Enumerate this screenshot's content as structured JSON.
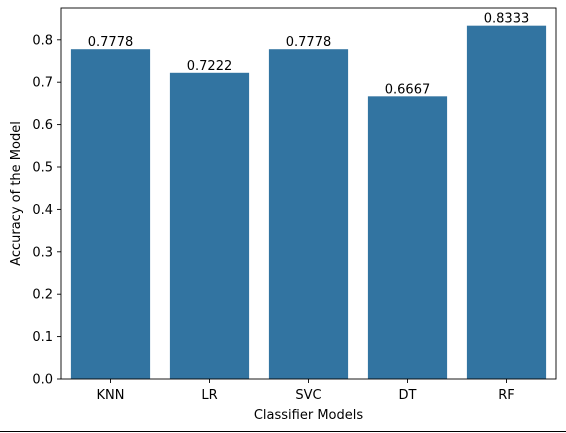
{
  "chart_data": {
    "type": "bar",
    "categories": [
      "KNN",
      "LR",
      "SVC",
      "DT",
      "RF"
    ],
    "values": [
      0.7778,
      0.7222,
      0.7778,
      0.6667,
      0.8333
    ],
    "value_labels": [
      "0.7778",
      "0.7222",
      "0.7778",
      "0.6667",
      "0.8333"
    ],
    "title": "",
    "xlabel": "Classifier Models",
    "ylabel": "Accuracy of the Model",
    "ylim": [
      0,
      0.875
    ],
    "yticks": [
      0.0,
      0.1,
      0.2,
      0.3,
      0.4,
      0.5,
      0.6,
      0.7,
      0.8
    ],
    "ytick_labels": [
      "0.0",
      "0.1",
      "0.2",
      "0.3",
      "0.4",
      "0.5",
      "0.6",
      "0.7",
      "0.8"
    ],
    "grid": false,
    "legend": "none",
    "bar_color": "#3274a1"
  }
}
